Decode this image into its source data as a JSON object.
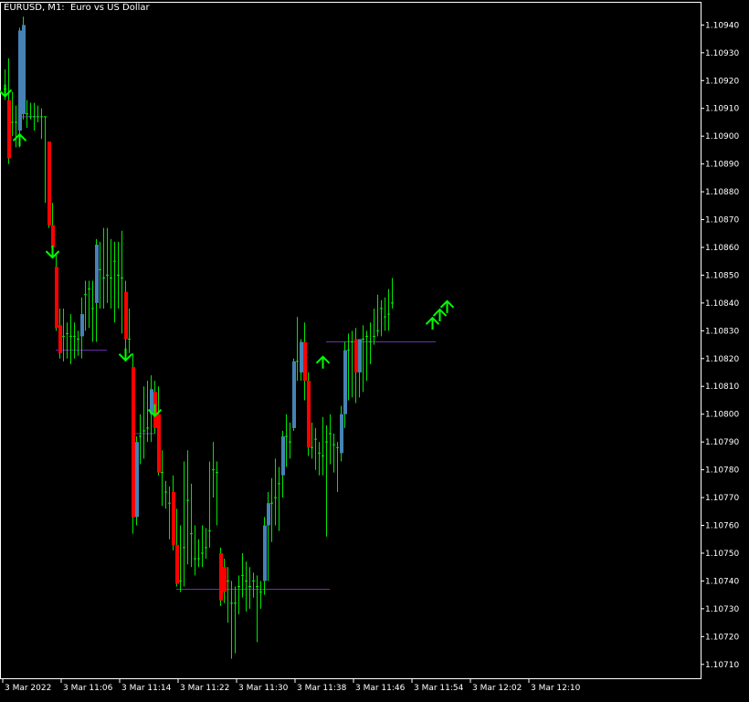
{
  "window": {
    "title": "EURUSD, M1:  Euro vs US Dollar"
  },
  "colors": {
    "background": "#000000",
    "frame": "#ffffff",
    "wick": "#00e600",
    "bull_body": "#4682b4",
    "bear_body": "#ff0000",
    "arrow": "#00ff00",
    "level_line": "#6a2fb4"
  },
  "chart_data": {
    "type": "candlestick",
    "symbol": "EURUSD",
    "timeframe": "M1",
    "ylim": [
      1.10705,
      1.10948
    ],
    "y_ticks": [
      "1.10940",
      "1.10930",
      "1.10920",
      "1.10910",
      "1.10900",
      "1.10890",
      "1.10880",
      "1.10870",
      "1.10860",
      "1.10850",
      "1.10840",
      "1.10830",
      "1.10820",
      "1.10810",
      "1.10800",
      "1.10790",
      "1.10780",
      "1.10770",
      "1.10760",
      "1.10750",
      "1.10740",
      "1.10730",
      "1.10720",
      "1.10710"
    ],
    "x_ticks": [
      {
        "label": "3 Mar 2022",
        "bar": 0
      },
      {
        "label": "3 Mar 11:06",
        "bar": 16
      },
      {
        "label": "3 Mar 11:14",
        "bar": 32
      },
      {
        "label": "3 Mar 11:22",
        "bar": 48
      },
      {
        "label": "3 Mar 11:30",
        "bar": 64
      },
      {
        "label": "3 Mar 11:38",
        "bar": 80
      },
      {
        "label": "3 Mar 11:46",
        "bar": 96
      },
      {
        "label": "3 Mar 11:54",
        "bar": 112
      },
      {
        "label": "3 Mar 12:02",
        "bar": 128
      },
      {
        "label": "3 Mar 12:10",
        "bar": 144
      }
    ],
    "candles": [
      {
        "o": 1.10917,
        "h": 1.10924,
        "l": 1.10913,
        "c": 1.10913
      },
      {
        "o": 1.10913,
        "h": 1.10928,
        "l": 1.1089,
        "c": 1.10892
      },
      {
        "o": 1.10905,
        "h": 1.10916,
        "l": 1.109,
        "c": 1.10905
      },
      {
        "o": 1.10905,
        "h": 1.10911,
        "l": 1.10896,
        "c": 1.10901
      },
      {
        "o": 1.10902,
        "h": 1.10939,
        "l": 1.10896,
        "c": 1.10938
      },
      {
        "o": 1.10908,
        "h": 1.10943,
        "l": 1.10906,
        "c": 1.1094
      },
      {
        "o": 1.10908,
        "h": 1.10913,
        "l": 1.10903,
        "c": 1.10907
      },
      {
        "o": 1.10907,
        "h": 1.10912,
        "l": 1.10906,
        "c": 1.10907
      },
      {
        "o": 1.10907,
        "h": 1.10912,
        "l": 1.10902,
        "c": 1.10907
      },
      {
        "o": 1.10907,
        "h": 1.10911,
        "l": 1.10905,
        "c": 1.10907
      },
      {
        "o": 1.10907,
        "h": 1.1091,
        "l": 1.10899,
        "c": 1.10907
      },
      {
        "o": 1.10907,
        "h": 1.10907,
        "l": 1.10876,
        "c": 1.10907
      },
      {
        "o": 1.10898,
        "h": 1.10898,
        "l": 1.10867,
        "c": 1.10868
      },
      {
        "o": 1.10868,
        "h": 1.10876,
        "l": 1.10858,
        "c": 1.1086
      },
      {
        "o": 1.10853,
        "h": 1.10858,
        "l": 1.1083,
        "c": 1.10831
      },
      {
        "o": 1.10832,
        "h": 1.10838,
        "l": 1.1082,
        "c": 1.10822
      },
      {
        "o": 1.10828,
        "h": 1.10838,
        "l": 1.10819,
        "c": 1.10827
      },
      {
        "o": 1.10829,
        "h": 1.10833,
        "l": 1.1082,
        "c": 1.10825
      },
      {
        "o": 1.10828,
        "h": 1.10836,
        "l": 1.10818,
        "c": 1.10822
      },
      {
        "o": 1.10828,
        "h": 1.10833,
        "l": 1.1082,
        "c": 1.10822
      },
      {
        "o": 1.10827,
        "h": 1.1083,
        "l": 1.10821,
        "c": 1.10823
      },
      {
        "o": 1.10828,
        "h": 1.10842,
        "l": 1.1082,
        "c": 1.10836
      },
      {
        "o": 1.10843,
        "h": 1.10848,
        "l": 1.1083,
        "c": 1.10843
      },
      {
        "o": 1.10845,
        "h": 1.10848,
        "l": 1.10831,
        "c": 1.10843
      },
      {
        "o": 1.10838,
        "h": 1.10848,
        "l": 1.10826,
        "c": 1.10835
      },
      {
        "o": 1.1084,
        "h": 1.10863,
        "l": 1.10826,
        "c": 1.10861
      },
      {
        "o": 1.10852,
        "h": 1.10862,
        "l": 1.10838,
        "c": 1.10849
      },
      {
        "o": 1.10849,
        "h": 1.10867,
        "l": 1.10838,
        "c": 1.10849
      },
      {
        "o": 1.1085,
        "h": 1.10867,
        "l": 1.1084,
        "c": 1.10849
      },
      {
        "o": 1.10849,
        "h": 1.10863,
        "l": 1.10838,
        "c": 1.10855
      },
      {
        "o": 1.10855,
        "h": 1.10862,
        "l": 1.10833,
        "c": 1.10849
      },
      {
        "o": 1.1085,
        "h": 1.10862,
        "l": 1.10838,
        "c": 1.10849
      },
      {
        "o": 1.10849,
        "h": 1.10866,
        "l": 1.10829,
        "c": 1.10845
      },
      {
        "o": 1.10844,
        "h": 1.10848,
        "l": 1.10822,
        "c": 1.10827
      },
      {
        "o": 1.10827,
        "h": 1.10838,
        "l": 1.10822,
        "c": 1.10823
      },
      {
        "o": 1.10817,
        "h": 1.10822,
        "l": 1.10757,
        "c": 1.10763
      },
      {
        "o": 1.10763,
        "h": 1.10792,
        "l": 1.1076,
        "c": 1.1079
      },
      {
        "o": 1.10792,
        "h": 1.108,
        "l": 1.10782,
        "c": 1.10794
      },
      {
        "o": 1.10794,
        "h": 1.1081,
        "l": 1.10784,
        "c": 1.10795
      },
      {
        "o": 1.10795,
        "h": 1.10812,
        "l": 1.1079,
        "c": 1.108
      },
      {
        "o": 1.108,
        "h": 1.10814,
        "l": 1.1079,
        "c": 1.10809
      },
      {
        "o": 1.10808,
        "h": 1.10812,
        "l": 1.10793,
        "c": 1.10795
      },
      {
        "o": 1.108,
        "h": 1.1081,
        "l": 1.10778,
        "c": 1.10779
      },
      {
        "o": 1.10779,
        "h": 1.10787,
        "l": 1.10767,
        "c": 1.10772
      },
      {
        "o": 1.10772,
        "h": 1.10776,
        "l": 1.10766,
        "c": 1.10768
      },
      {
        "o": 1.10768,
        "h": 1.10774,
        "l": 1.10755,
        "c": 1.10772
      },
      {
        "o": 1.10772,
        "h": 1.10778,
        "l": 1.10751,
        "c": 1.10753
      },
      {
        "o": 1.10753,
        "h": 1.10766,
        "l": 1.10738,
        "c": 1.10739
      },
      {
        "o": 1.1074,
        "h": 1.1076,
        "l": 1.10736,
        "c": 1.1074
      },
      {
        "o": 1.10752,
        "h": 1.10783,
        "l": 1.10738,
        "c": 1.10757
      },
      {
        "o": 1.10769,
        "h": 1.10787,
        "l": 1.10746,
        "c": 1.10771
      },
      {
        "o": 1.10757,
        "h": 1.10775,
        "l": 1.10745,
        "c": 1.10758
      },
      {
        "o": 1.10748,
        "h": 1.1076,
        "l": 1.10742,
        "c": 1.10748
      },
      {
        "o": 1.10748,
        "h": 1.10755,
        "l": 1.10745,
        "c": 1.1075
      },
      {
        "o": 1.1075,
        "h": 1.1076,
        "l": 1.10745,
        "c": 1.10752
      },
      {
        "o": 1.10752,
        "h": 1.10759,
        "l": 1.10748,
        "c": 1.10757
      },
      {
        "o": 1.10758,
        "h": 1.10783,
        "l": 1.10752,
        "c": 1.1076
      },
      {
        "o": 1.1078,
        "h": 1.1079,
        "l": 1.1077,
        "c": 1.10783
      },
      {
        "o": 1.10779,
        "h": 1.10783,
        "l": 1.1076,
        "c": 1.10778
      },
      {
        "o": 1.1075,
        "h": 1.10752,
        "l": 1.10731,
        "c": 1.10733
      },
      {
        "o": 1.10745,
        "h": 1.10748,
        "l": 1.10732,
        "c": 1.10736
      },
      {
        "o": 1.1074,
        "h": 1.10745,
        "l": 1.10725,
        "c": 1.1074
      },
      {
        "o": 1.10732,
        "h": 1.1074,
        "l": 1.10712,
        "c": 1.10734
      },
      {
        "o": 1.10732,
        "h": 1.10738,
        "l": 1.10714,
        "c": 1.10731
      },
      {
        "o": 1.10738,
        "h": 1.10742,
        "l": 1.10728,
        "c": 1.10738
      },
      {
        "o": 1.10742,
        "h": 1.1075,
        "l": 1.10734,
        "c": 1.1074
      },
      {
        "o": 1.1074,
        "h": 1.10747,
        "l": 1.10729,
        "c": 1.10738
      },
      {
        "o": 1.10738,
        "h": 1.10745,
        "l": 1.1073,
        "c": 1.1074
      },
      {
        "o": 1.1074,
        "h": 1.10743,
        "l": 1.10734,
        "c": 1.10738
      },
      {
        "o": 1.10738,
        "h": 1.10742,
        "l": 1.10718,
        "c": 1.10736
      },
      {
        "o": 1.10736,
        "h": 1.1074,
        "l": 1.1073,
        "c": 1.1074
      },
      {
        "o": 1.1074,
        "h": 1.10763,
        "l": 1.10735,
        "c": 1.1076
      },
      {
        "o": 1.1076,
        "h": 1.10772,
        "l": 1.1074,
        "c": 1.10768
      },
      {
        "o": 1.10768,
        "h": 1.10777,
        "l": 1.10754,
        "c": 1.1077
      },
      {
        "o": 1.1077,
        "h": 1.10784,
        "l": 1.1076,
        "c": 1.10775
      },
      {
        "o": 1.10775,
        "h": 1.10781,
        "l": 1.10758,
        "c": 1.10778
      },
      {
        "o": 1.10778,
        "h": 1.10794,
        "l": 1.1077,
        "c": 1.10792
      },
      {
        "o": 1.10792,
        "h": 1.108,
        "l": 1.10781,
        "c": 1.1079
      },
      {
        "o": 1.1079,
        "h": 1.10797,
        "l": 1.10784,
        "c": 1.10795
      },
      {
        "o": 1.10795,
        "h": 1.1082,
        "l": 1.10794,
        "c": 1.10819
      },
      {
        "o": 1.10819,
        "h": 1.10835,
        "l": 1.10812,
        "c": 1.10825
      },
      {
        "o": 1.10815,
        "h": 1.10827,
        "l": 1.10812,
        "c": 1.10826
      },
      {
        "o": 1.10826,
        "h": 1.10833,
        "l": 1.10805,
        "c": 1.10812
      },
      {
        "o": 1.10812,
        "h": 1.10815,
        "l": 1.10785,
        "c": 1.10788
      },
      {
        "o": 1.10788,
        "h": 1.10797,
        "l": 1.10784,
        "c": 1.10791
      },
      {
        "o": 1.10791,
        "h": 1.10795,
        "l": 1.1078,
        "c": 1.10786
      },
      {
        "o": 1.10786,
        "h": 1.1079,
        "l": 1.10778,
        "c": 1.10785
      },
      {
        "o": 1.10785,
        "h": 1.10799,
        "l": 1.10778,
        "c": 1.1079
      },
      {
        "o": 1.1079,
        "h": 1.10796,
        "l": 1.10756,
        "c": 1.10793
      },
      {
        "o": 1.10793,
        "h": 1.108,
        "l": 1.10782,
        "c": 1.10789
      },
      {
        "o": 1.10789,
        "h": 1.10793,
        "l": 1.10779,
        "c": 1.10788
      },
      {
        "o": 1.10788,
        "h": 1.1079,
        "l": 1.10772,
        "c": 1.10786
      },
      {
        "o": 1.10786,
        "h": 1.10803,
        "l": 1.10783,
        "c": 1.108
      },
      {
        "o": 1.108,
        "h": 1.10826,
        "l": 1.10795,
        "c": 1.10823
      },
      {
        "o": 1.10823,
        "h": 1.10829,
        "l": 1.10805,
        "c": 1.10826
      },
      {
        "o": 1.10826,
        "h": 1.1083,
        "l": 1.10806,
        "c": 1.10827
      },
      {
        "o": 1.10827,
        "h": 1.10831,
        "l": 1.10804,
        "c": 1.10815
      },
      {
        "o": 1.10815,
        "h": 1.10827,
        "l": 1.10806,
        "c": 1.10827
      },
      {
        "o": 1.10827,
        "h": 1.10832,
        "l": 1.10808,
        "c": 1.10828
      },
      {
        "o": 1.10828,
        "h": 1.1083,
        "l": 1.10812,
        "c": 1.10826
      },
      {
        "o": 1.10826,
        "h": 1.10833,
        "l": 1.10818,
        "c": 1.10828
      },
      {
        "o": 1.10828,
        "h": 1.10838,
        "l": 1.10825,
        "c": 1.1083
      },
      {
        "o": 1.1083,
        "h": 1.10843,
        "l": 1.10828,
        "c": 1.10838
      },
      {
        "o": 1.10838,
        "h": 1.10841,
        "l": 1.10828,
        "c": 1.10835
      },
      {
        "o": 1.10835,
        "h": 1.10842,
        "l": 1.1083,
        "c": 1.10836
      },
      {
        "o": 1.10836,
        "h": 1.10845,
        "l": 1.1083,
        "c": 1.1084
      },
      {
        "o": 1.1084,
        "h": 1.10849,
        "l": 1.10838,
        "c": 1.10848
      }
    ],
    "level_lines": [
      {
        "price": 1.10907,
        "from_bar": 4,
        "to_bar": 9
      },
      {
        "price": 1.10823,
        "from_bar": 14,
        "to_bar": 28
      },
      {
        "price": 1.10793,
        "from_bar": 35,
        "to_bar": 41
      },
      {
        "price": 1.10737,
        "from_bar": 47,
        "to_bar": 89
      },
      {
        "price": 1.10826,
        "from_bar": 88,
        "to_bar": 118
      }
    ],
    "arrows": [
      {
        "bar": 0,
        "price": 1.10915,
        "dir": "down"
      },
      {
        "bar": 4,
        "price": 1.109,
        "dir": "up"
      },
      {
        "bar": 13,
        "price": 1.10857,
        "dir": "down"
      },
      {
        "bar": 33,
        "price": 1.1082,
        "dir": "down"
      },
      {
        "bar": 41,
        "price": 1.108,
        "dir": "down"
      },
      {
        "bar": 87,
        "price": 1.1082,
        "dir": "up"
      },
      {
        "bar": 117,
        "price": 1.10834,
        "dir": "up"
      },
      {
        "bar": 119,
        "price": 1.10837,
        "dir": "up"
      },
      {
        "bar": 121,
        "price": 1.1084,
        "dir": "up"
      }
    ]
  }
}
